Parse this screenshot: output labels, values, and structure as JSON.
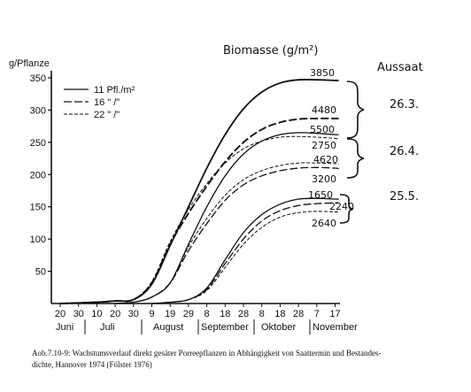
{
  "chart_data": {
    "type": "line",
    "title": "Biomasse (g/m²)",
    "ylabel": "g/Pflanze",
    "ylim": [
      0,
      350
    ],
    "yticks": [
      50,
      100,
      150,
      200,
      250,
      300,
      350
    ],
    "xtick_labels": [
      "20",
      "30",
      "10",
      "20",
      "30",
      "9",
      "19",
      "29",
      "8",
      "18",
      "28",
      "8",
      "18",
      "28",
      "7",
      "17"
    ],
    "months": [
      "Juni",
      "Juli",
      "August",
      "September",
      "Oktober",
      "November"
    ],
    "legend": {
      "placement": "top-left",
      "entries": [
        "11 Pfl./m²",
        "16 \" /\"",
        "22 \" /\""
      ]
    },
    "group_header": "Aussaat",
    "sowing_dates": [
      "26.3.",
      "26.4.",
      "25.5."
    ],
    "biomass_labels": [
      "3850",
      "4480",
      "5500",
      "2750",
      "4620",
      "3200",
      "1650",
      "2240",
      "2640"
    ],
    "series": [
      {
        "group": 0,
        "style": "solid",
        "x": [
          0,
          20,
          30,
          40,
          50,
          60,
          70,
          80,
          90,
          100,
          110,
          120,
          130,
          140,
          150,
          152
        ],
        "y": [
          0,
          2,
          4,
          6,
          30,
          90,
          150,
          210,
          262,
          302,
          328,
          342,
          347,
          347,
          346,
          346
        ]
      },
      {
        "group": 0,
        "style": "long-dash",
        "x": [
          0,
          20,
          30,
          40,
          50,
          60,
          70,
          80,
          90,
          100,
          110,
          120,
          130,
          140,
          150,
          152
        ],
        "y": [
          0,
          2,
          4,
          6,
          32,
          92,
          140,
          182,
          220,
          250,
          270,
          281,
          286,
          287,
          287,
          287
        ]
      },
      {
        "group": 0,
        "style": "short-dash",
        "x": [
          0,
          20,
          30,
          40,
          50,
          60,
          70,
          80,
          90,
          100,
          110,
          120,
          130,
          140,
          150,
          152
        ],
        "y": [
          0,
          2,
          4,
          6,
          34,
          96,
          146,
          186,
          218,
          240,
          252,
          258,
          259,
          258,
          256,
          255
        ]
      },
      {
        "group": 1,
        "style": "solid",
        "x": [
          30,
          40,
          50,
          60,
          70,
          80,
          90,
          100,
          110,
          120,
          130,
          140,
          150,
          152
        ],
        "y": [
          0,
          2,
          10,
          32,
          92,
          150,
          198,
          232,
          252,
          262,
          265,
          264,
          262,
          262
        ]
      },
      {
        "group": 1,
        "style": "short-dash",
        "x": [
          30,
          40,
          50,
          60,
          70,
          80,
          90,
          100,
          110,
          120,
          130,
          140,
          150,
          152
        ],
        "y": [
          0,
          2,
          10,
          32,
          88,
          132,
          168,
          192,
          206,
          214,
          218,
          218,
          217,
          216
        ]
      },
      {
        "group": 1,
        "style": "long-dash",
        "x": [
          30,
          40,
          50,
          60,
          70,
          80,
          90,
          100,
          110,
          120,
          130,
          140,
          150,
          152
        ],
        "y": [
          0,
          2,
          10,
          32,
          82,
          124,
          160,
          184,
          198,
          206,
          210,
          211,
          210,
          209
        ]
      },
      {
        "group": 2,
        "style": "solid",
        "x": [
          50,
          60,
          70,
          80,
          90,
          100,
          110,
          120,
          130,
          140,
          150,
          152
        ],
        "y": [
          0,
          2,
          6,
          24,
          68,
          110,
          138,
          154,
          162,
          163,
          162,
          162
        ]
      },
      {
        "group": 2,
        "style": "long-dash",
        "x": [
          50,
          60,
          70,
          80,
          90,
          100,
          110,
          120,
          130,
          140,
          150,
          152
        ],
        "y": [
          0,
          2,
          6,
          22,
          62,
          100,
          128,
          144,
          152,
          155,
          156,
          156
        ]
      },
      {
        "group": 2,
        "style": "short-dash",
        "x": [
          50,
          60,
          70,
          80,
          90,
          100,
          110,
          120,
          130,
          140,
          150,
          152
        ],
        "y": [
          0,
          2,
          6,
          20,
          56,
          92,
          118,
          134,
          141,
          143,
          142,
          142
        ]
      }
    ]
  },
  "caption": {
    "line1": "Aob.7.10-9: Wachstumsverlauf direkt gesäter Porreepflanzen in Abhängigkeit von Saattermin und Bestandes-",
    "line2": "dichte, Hannover 1974 (Fölster 1976)"
  }
}
